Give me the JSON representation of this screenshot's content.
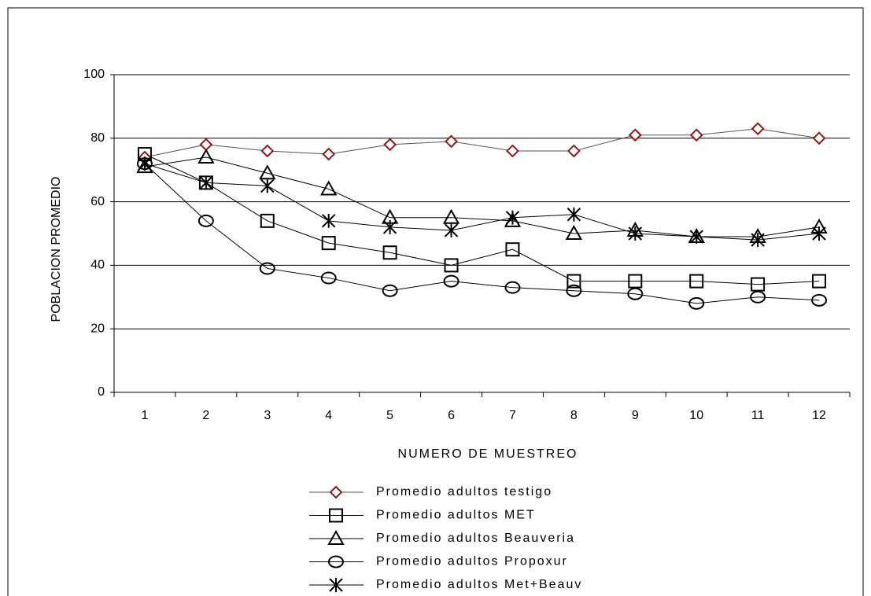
{
  "chart_data": {
    "type": "line",
    "xlabel": "NUMERO DE MUESTREO",
    "ylabel": "POBLACION PROMEDIO",
    "categories": [
      "1",
      "2",
      "3",
      "4",
      "5",
      "6",
      "7",
      "8",
      "9",
      "10",
      "11",
      "12"
    ],
    "series": [
      {
        "name": "Promedio adultos testigo",
        "color": "#8b1a1a",
        "marker": "diamond",
        "values": [
          74,
          78,
          76,
          75,
          78,
          79,
          76,
          76,
          81,
          81,
          83,
          80
        ]
      },
      {
        "name": "Promedio adultos MET",
        "color": "#000000",
        "marker": "square",
        "values": [
          75,
          66,
          54,
          47,
          44,
          40,
          45,
          35,
          35,
          35,
          34,
          35
        ]
      },
      {
        "name": "Promedio adultos Beauveria",
        "color": "#000000",
        "marker": "triangle",
        "values": [
          71,
          74,
          69,
          64,
          55,
          55,
          54,
          50,
          51,
          49,
          49,
          52
        ]
      },
      {
        "name": "Promedio adultos Propoxur",
        "color": "#000000",
        "marker": "circle",
        "values": [
          72,
          54,
          39,
          36,
          32,
          35,
          33,
          32,
          31,
          28,
          30,
          29
        ]
      },
      {
        "name": "Promedio adultos Met+Beauv",
        "color": "#000000",
        "marker": "star",
        "values": [
          72,
          66,
          65,
          54,
          52,
          51,
          55,
          56,
          50,
          49,
          48,
          50
        ]
      }
    ],
    "ylim": [
      0,
      100
    ],
    "yticks": [
      0,
      20,
      40,
      60,
      80,
      100
    ],
    "grid": true,
    "legend": "bottom"
  }
}
